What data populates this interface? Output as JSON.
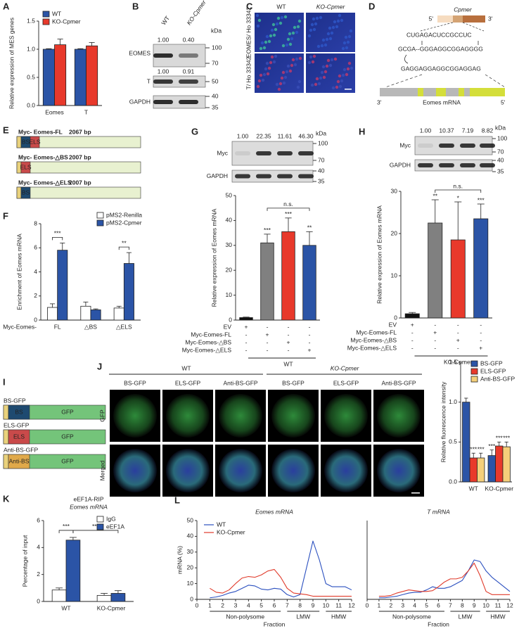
{
  "chart_data": [
    {
      "type": "bar",
      "label": "A",
      "ylabel": "Relative expression of MES genes",
      "categories": [
        "Eomes",
        "T"
      ],
      "series": [
        {
          "name": "WT",
          "color": "#2b54a6",
          "values": [
            1.0,
            1.0
          ],
          "errors": [
            0.01,
            0.01
          ]
        },
        {
          "name": "KO-Cpmer",
          "color": "#e8392b",
          "values": [
            1.08,
            1.06
          ],
          "errors": [
            0.1,
            0.06
          ]
        }
      ],
      "ylim": [
        0,
        1.5
      ],
      "yticks": [
        {
          "value": 0,
          "label": "0.0"
        },
        {
          "value": 0.5,
          "label": "0.5"
        },
        {
          "value": 1,
          "label": "1.0"
        },
        {
          "value": 1.5,
          "label": "1.5"
        }
      ],
      "legend": "upper left"
    },
    {
      "type": "bar",
      "label": "F",
      "ylabel": "Enrichment of Eomes mRNA",
      "xprefix": "Myc-Eomes-",
      "categories": [
        "FL",
        "△BS",
        "△ELS"
      ],
      "series": [
        {
          "name": "pMS2-Renilla",
          "color": "#ffffff",
          "values": [
            1.05,
            1.15,
            1.0
          ],
          "errors": [
            0.3,
            0.35,
            0.15
          ]
        },
        {
          "name": "pMS2-Cpmer",
          "color": "#2b54a6",
          "values": [
            5.8,
            0.85,
            4.7
          ],
          "errors": [
            0.6,
            0.08,
            0.9
          ]
        }
      ],
      "ylim": [
        0,
        8
      ],
      "yticks": [
        0,
        2,
        4,
        6,
        8
      ],
      "legend": "upper right",
      "annotations": [
        "***",
        "**"
      ]
    },
    {
      "type": "bar",
      "label": "G",
      "ylabel": "Relative expression of Eomes mRNA",
      "values": [
        1,
        31,
        35.5,
        30
      ],
      "errors": [
        0.2,
        3.5,
        5.5,
        5.5
      ],
      "colors": [
        "#111111",
        "#808080",
        "#e8392b",
        "#2b54a6"
      ],
      "ylim": [
        0,
        50
      ],
      "yticks": [
        0,
        10,
        20,
        30,
        40,
        50
      ],
      "annotations": [
        "***",
        "***",
        "**",
        "n.s."
      ],
      "conditions": [
        {
          "label": "EV",
          "signs": [
            "+",
            "-",
            "-",
            "-"
          ]
        },
        {
          "label": "Myc-Eomes-FL",
          "signs": [
            "-",
            "+",
            "-",
            "-"
          ]
        },
        {
          "label": "Myc-Eomes-△BS",
          "signs": [
            "-",
            "-",
            "+",
            "-"
          ]
        },
        {
          "label": "Myc-Eomes-△ELS",
          "signs": [
            "-",
            "-",
            "-",
            "+"
          ]
        }
      ],
      "group": "WT"
    },
    {
      "type": "bar",
      "label": "H",
      "ylabel": "Relative expression of Eomes mRNA",
      "values": [
        1,
        22.5,
        18.5,
        23.5
      ],
      "errors": [
        0.3,
        5.5,
        9,
        3.5
      ],
      "colors": [
        "#111111",
        "#808080",
        "#e8392b",
        "#2b54a6"
      ],
      "ylim": [
        0,
        30
      ],
      "yticks": [
        0,
        10,
        20,
        30
      ],
      "annotations": [
        "**",
        "*",
        "***",
        "n.s."
      ],
      "conditions": [
        {
          "label": "EV",
          "signs": [
            "+",
            "-",
            "-",
            "-"
          ]
        },
        {
          "label": "Myc-Eomes-FL",
          "signs": [
            "-",
            "+",
            "-",
            "-"
          ]
        },
        {
          "label": "Myc-Eomes-△BS",
          "signs": [
            "-",
            "-",
            "+",
            "-"
          ]
        },
        {
          "label": "Myc-Eomes-△ELS",
          "signs": [
            "-",
            "-",
            "-",
            "+"
          ]
        }
      ],
      "group": "KO-Cpmer"
    },
    {
      "type": "bar",
      "ylabel": "Relative fluorescence intensity",
      "categories": [
        "WT",
        "KO-Cpmer"
      ],
      "series": [
        {
          "name": "BS-GFP",
          "color": "#2b54a6",
          "values": [
            1.0,
            0.33
          ],
          "errors": [
            0.05,
            0.07
          ]
        },
        {
          "name": "ELS-GFP",
          "color": "#e8392b",
          "values": [
            0.3,
            0.45
          ],
          "errors": [
            0.06,
            0.05
          ]
        },
        {
          "name": "Anti-BS-GFP",
          "color": "#f5cf7a",
          "values": [
            0.3,
            0.44
          ],
          "errors": [
            0.06,
            0.06
          ]
        }
      ],
      "ylim": [
        0,
        1.5
      ],
      "yticks": [
        {
          "value": 0,
          "label": "0.0"
        },
        {
          "value": 0.5,
          "label": "0.5"
        },
        {
          "value": 1,
          "label": "1.0"
        },
        {
          "value": 1.5,
          "label": "1.5"
        }
      ],
      "legend": "upper right",
      "annotations": [
        "***",
        "***",
        "***",
        "***",
        "***"
      ]
    },
    {
      "type": "bar",
      "label": "K",
      "title": "eEF1A-RIP",
      "subtitle": "Eomes mRNA",
      "ylabel": "Percentage of input",
      "categories": [
        "WT",
        "KO-Cpmer"
      ],
      "series": [
        {
          "name": "IgG",
          "color": "#ffffff",
          "values": [
            0.85,
            0.45
          ],
          "errors": [
            0.15,
            0.15
          ]
        },
        {
          "name": "eEF1A",
          "color": "#2b54a6",
          "values": [
            4.55,
            0.6
          ],
          "errors": [
            0.2,
            0.2
          ]
        }
      ],
      "ylim": [
        0,
        6
      ],
      "yticks": [
        0,
        2,
        4,
        6
      ],
      "legend": "upper right",
      "annotations": [
        "***",
        "***"
      ]
    },
    {
      "type": "line",
      "label": "L",
      "title": "Eomes mRNA",
      "ylabel": "mRNA (%)",
      "xlabel": "Fraction",
      "x": [
        1,
        1.5,
        2,
        2.5,
        3,
        3.5,
        4,
        4.5,
        5,
        5.5,
        6,
        6.5,
        7,
        7.5,
        8,
        8.5,
        9,
        9.5,
        10,
        10.5,
        11,
        11.5,
        12
      ],
      "series": [
        {
          "name": "WT",
          "color": "#2a4fbf",
          "values": [
            1,
            1.5,
            2.5,
            4,
            5,
            7,
            9,
            8.5,
            6.5,
            6,
            7,
            6.5,
            3,
            1.5,
            3,
            20,
            37,
            25,
            10,
            8,
            8,
            8,
            6
          ]
        },
        {
          "name": "KO-Cpmer",
          "color": "#e03a2a",
          "values": [
            7,
            4.5,
            4,
            6,
            10,
            13.5,
            14.5,
            14,
            15.5,
            18,
            19,
            14,
            7,
            4,
            3.5,
            3,
            2,
            2,
            2,
            2,
            2,
            2,
            2
          ]
        }
      ],
      "xlim": [
        0,
        12
      ],
      "xticks": [
        0,
        1,
        2,
        3,
        4,
        5,
        6,
        7,
        8,
        9,
        10,
        11,
        12
      ],
      "ylim": [
        0,
        50
      ],
      "yticks": [
        0,
        10,
        20,
        30,
        40,
        50
      ],
      "legend": "upper left",
      "groups": [
        "Non-polysome",
        "LMW",
        "HMW"
      ]
    },
    {
      "type": "line",
      "title": "T mRNA",
      "xlabel": "Fraction",
      "x": [
        1,
        1.5,
        2,
        2.5,
        3,
        3.5,
        4,
        4.5,
        5,
        5.5,
        6,
        6.5,
        7,
        7.5,
        8,
        8.5,
        9,
        9.5,
        10,
        10.5,
        11,
        11.5,
        12
      ],
      "series": [
        {
          "name": "WT",
          "color": "#2a4fbf",
          "values": [
            1,
            1,
            1.5,
            2,
            3,
            4,
            4.5,
            4.5,
            6,
            8,
            7,
            7,
            8,
            10,
            12,
            18,
            25,
            24,
            18,
            14,
            11,
            8,
            5
          ]
        },
        {
          "name": "KO-Cpmer",
          "color": "#e03a2a",
          "values": [
            2,
            2,
            2.5,
            4,
            5,
            6,
            5.5,
            5,
            5,
            5.5,
            8,
            11,
            13,
            13,
            14,
            18,
            23,
            15,
            5,
            3,
            3,
            3,
            3
          ]
        }
      ],
      "xlim": [
        0,
        12
      ],
      "xticks": [
        0,
        1,
        2,
        3,
        4,
        5,
        6,
        7,
        8,
        9,
        10,
        11,
        12
      ],
      "ylim": [
        0,
        50
      ],
      "groups": [
        "Non-polysome",
        "LMW",
        "HMW"
      ]
    }
  ],
  "figures": {
    "B": {
      "letter": "B",
      "lanes": [
        "WT",
        "KO-Cpmer"
      ],
      "unit": "kDa",
      "bands": [
        {
          "name": "EOMES",
          "quant": [
            "1.00",
            "0.40"
          ],
          "markers": [
            "100",
            "70"
          ]
        },
        {
          "name": "T",
          "quant": [
            "1.00",
            "0.91"
          ],
          "markers": [
            "50"
          ]
        },
        {
          "name": "GAPDH",
          "markers": [
            "40",
            "35"
          ]
        }
      ]
    },
    "C": {
      "letter": "C",
      "columns": [
        "WT",
        "KO-Cpmer"
      ],
      "rows": [
        "EOMES/ Ho 33342",
        "T/ Ho 33342"
      ]
    },
    "D": {
      "letter": "D",
      "gene": "Cpmer",
      "five": "5'",
      "three": "3'",
      "seq_top": "CUGAGACUCCGCCUC",
      "seq_mid": "GCGA--GGGAGGCGGAGGGG",
      "seq_bottom": "GAGGAGGAGGCGGAGGAG",
      "mrna_left": "3'",
      "mrna": "Eomes mRNA",
      "mrna_right": "5'"
    },
    "E": {
      "letter": "E",
      "constructs": [
        {
          "name": "Myc- Eomes-FL",
          "length": "2067 bp",
          "parts": [
            "BS",
            "ELS"
          ]
        },
        {
          "name": "Myc- Eomes-△BS",
          "length": "2007 bp",
          "parts": [
            "ELS"
          ]
        },
        {
          "name": "Myc- Eomes-△ELS",
          "length": "2007 bp",
          "parts": [
            "BS"
          ]
        }
      ]
    },
    "G_blot": {
      "quant": [
        "1.00",
        "22.35",
        "11.61",
        "46.30"
      ],
      "unit": "kDa",
      "bands": [
        {
          "name": "Myc",
          "markers": [
            "100",
            "70"
          ]
        },
        {
          "name": "GAPDH",
          "markers": [
            "40",
            "35"
          ]
        }
      ]
    },
    "H_blot": {
      "quant": [
        "1.00",
        "10.37",
        "7.19",
        "8.82"
      ],
      "unit": "kDa",
      "bands": [
        {
          "name": "Myc",
          "markers": [
            "100",
            "70"
          ]
        },
        {
          "name": "GAPDH",
          "markers": [
            "40",
            "35"
          ]
        }
      ]
    },
    "I": {
      "letter": "I",
      "constructs": [
        {
          "name": "BS-GFP",
          "parts": [
            "BS",
            "GFP"
          ]
        },
        {
          "name": "ELS-GFP",
          "parts": [
            "ELS",
            "GFP"
          ]
        },
        {
          "name": "Anti-BS-GFP",
          "parts": [
            "Anti-BS",
            "GFP"
          ]
        }
      ]
    },
    "J": {
      "letter": "J",
      "groups": [
        "WT",
        "KO-Cpmer"
      ],
      "columns": [
        "BS-GFP",
        "ELS-GFP",
        "Anti-BS-GFP",
        "BS-GFP",
        "ELS-GFP",
        "Anti-BS-GFP"
      ],
      "rows": [
        "GFP",
        "Merged"
      ]
    }
  }
}
